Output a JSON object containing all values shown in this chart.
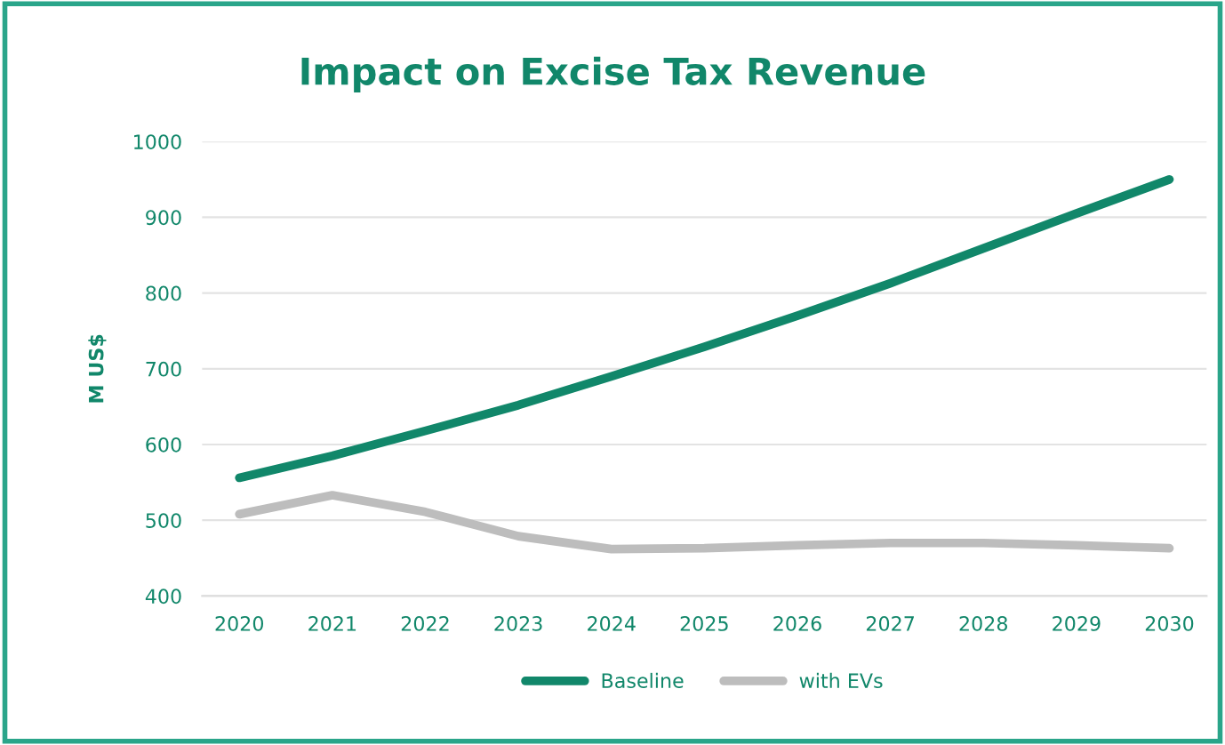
{
  "chart_data": {
    "type": "line",
    "title": "Impact on Excise Tax Revenue",
    "ylabel": "M US$",
    "categories": [
      "2020",
      "2021",
      "2022",
      "2023",
      "2024",
      "2025",
      "2026",
      "2027",
      "2028",
      "2029",
      "2030"
    ],
    "series": [
      {
        "name": "Baseline",
        "color": "#11876a",
        "values": [
          556,
          585,
          618,
          652,
          690,
          729,
          770,
          813,
          859,
          905,
          950
        ]
      },
      {
        "name": "with EVs",
        "color": "#bdbdbd",
        "values": [
          508,
          533,
          511,
          479,
          462,
          463,
          467,
          470,
          470,
          467,
          463
        ]
      }
    ],
    "ylim": [
      400,
      1000
    ],
    "yticks": [
      400,
      500,
      600,
      700,
      800,
      900,
      1000
    ],
    "grid": "y",
    "legend": "bottom",
    "marker": "none",
    "line_style": "solid"
  }
}
